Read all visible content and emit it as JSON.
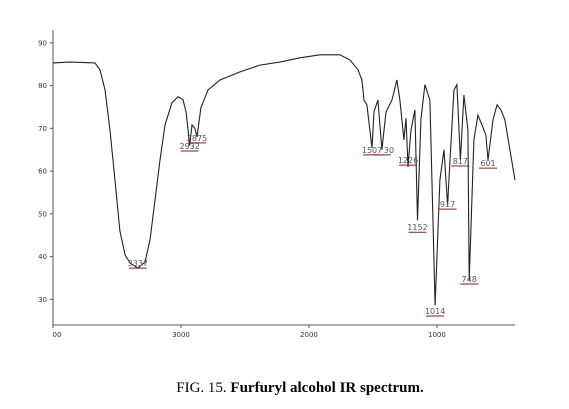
{
  "chart_data": {
    "type": "line",
    "caption_prefix": "FIG. 15.",
    "title": "Furfuryl alcohol IR spectrum.",
    "x": [
      4000,
      3867,
      3672,
      3633,
      3594,
      3555,
      3516,
      3477,
      3437,
      3398,
      3337,
      3281,
      3242,
      3203,
      3164,
      3125,
      3070,
      3023,
      2984,
      2960,
      2932,
      2914,
      2891,
      2875,
      2844,
      2789,
      2695,
      2539,
      2383,
      2227,
      2070,
      1914,
      1758,
      1680,
      1617,
      1586,
      1570,
      1547,
      1507,
      1492,
      1461,
      1430,
      1398,
      1352,
      1313,
      1289,
      1258,
      1242,
      1226,
      1203,
      1172,
      1152,
      1125,
      1094,
      1055,
      1014,
      977,
      945,
      917,
      898,
      867,
      844,
      817,
      789,
      758,
      748,
      711,
      680,
      648,
      617,
      601,
      562,
      531,
      500,
      469,
      430,
      390
    ],
    "series": [
      {
        "color": "#222222",
        "values": [
          85.3,
          85.5,
          85.3,
          83.7,
          79,
          69.6,
          58,
          46,
          40.4,
          38.5,
          37.3,
          38.7,
          43.9,
          53.2,
          62.6,
          70.8,
          76,
          77.4,
          76.7,
          73.8,
          66,
          70.8,
          70,
          68,
          74.8,
          79,
          81.3,
          83.2,
          84.8,
          85.5,
          86.5,
          87.2,
          87.2,
          86,
          83.7,
          81.3,
          76.6,
          75.5,
          65.4,
          73.9,
          76.6,
          65,
          73.8,
          76.6,
          81.3,
          76.6,
          67.3,
          72.4,
          61,
          69.6,
          74.3,
          48.5,
          72,
          80.2,
          76.6,
          28.6,
          57.9,
          65,
          52,
          62.6,
          79,
          80.2,
          62.6,
          77.8,
          69.6,
          34.5,
          67.3,
          73.1,
          70.8,
          68.4,
          62.6,
          72,
          75.5,
          74.3,
          72,
          65,
          57.9
        ]
      }
    ],
    "peaks": [
      {
        "x": 3337,
        "y": 37.3
      },
      {
        "x": 2932,
        "y": 64.7
      },
      {
        "x": 2875,
        "y": 66.6
      },
      {
        "x": 1507,
        "y": 63.8
      },
      {
        "x": 1430,
        "y": 63.8,
        "label": "30"
      },
      {
        "x": 1226,
        "y": 61.4
      },
      {
        "x": 1152,
        "y": 45.7
      },
      {
        "x": 1014,
        "y": 26.1
      },
      {
        "x": 917,
        "y": 51.1
      },
      {
        "x": 817,
        "y": 61.2
      },
      {
        "x": 748,
        "y": 33.6
      },
      {
        "x": 601,
        "y": 60.7
      }
    ],
    "peak_color": "#8b1a1a",
    "xlim": [
      4000,
      390
    ],
    "xticks": [
      {
        "value": 4000,
        "label": "00"
      },
      3000,
      2000,
      1000
    ],
    "ylim": [
      24,
      93
    ],
    "yticks": [
      30,
      40,
      50,
      60,
      70,
      80,
      90
    ]
  }
}
